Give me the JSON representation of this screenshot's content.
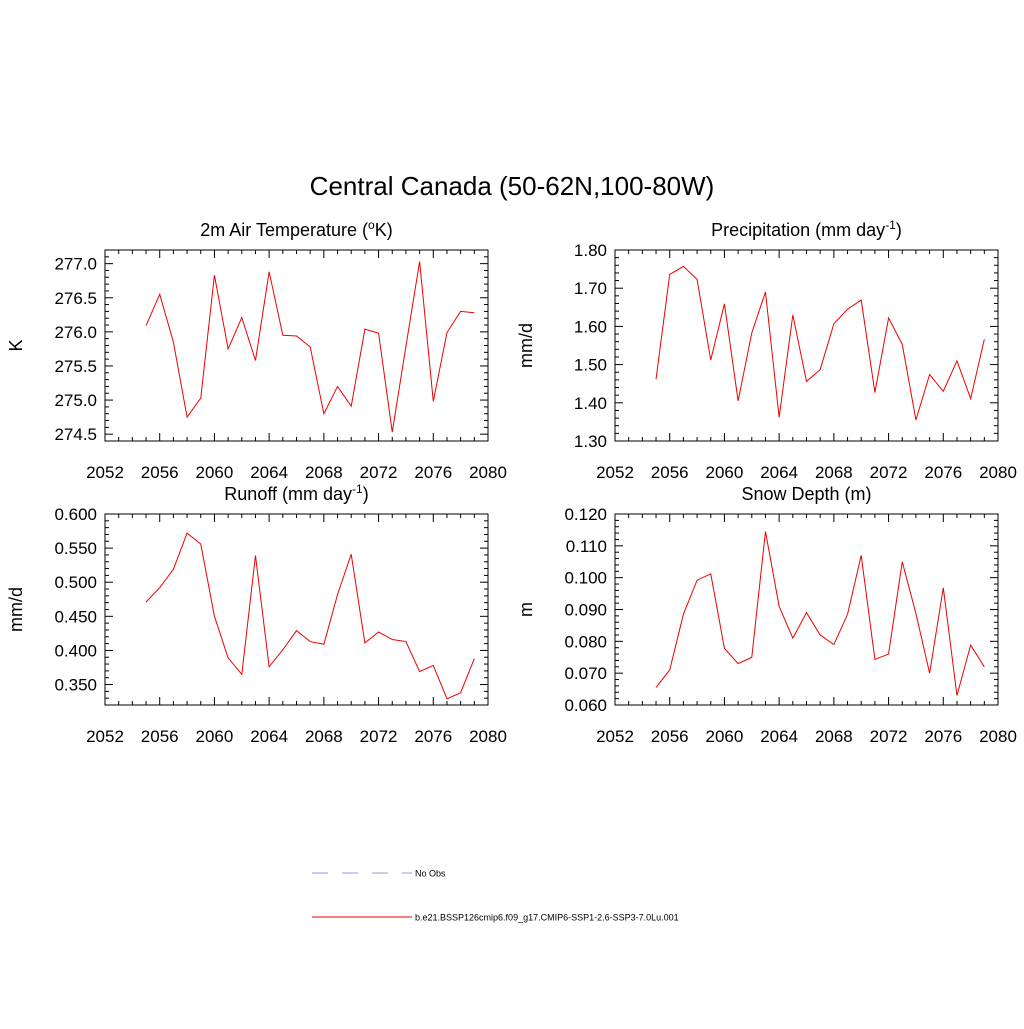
{
  "title": "Central Canada (50-62N,100-80W)",
  "legend": [
    {
      "label": "No Obs",
      "color": "#9999dd",
      "dash": "dashed"
    },
    {
      "label": "b.e21.BSSP126cmip6.f09_g17.CMIP6-SSP1-2.6-SSP3-7.0Lu.001",
      "color": "#ee0000",
      "dash": "solid"
    }
  ],
  "series_color": "#ee0000",
  "chart_data": [
    {
      "type": "line",
      "title_main": "2m Air Temperature (",
      "title_sup": "o",
      "title_end": "K)",
      "ylabel": "K",
      "xlim": [
        2052,
        2080
      ],
      "xticks": [
        "2052",
        "2056",
        "2060",
        "2064",
        "2068",
        "2072",
        "2076",
        "2080"
      ],
      "ylim": [
        274.4,
        277.2
      ],
      "yticks": [
        "274.5",
        "275.0",
        "275.5",
        "276.0",
        "276.5",
        "277.0"
      ],
      "x": [
        2055,
        2056,
        2057,
        2058,
        2059,
        2060,
        2061,
        2062,
        2063,
        2064,
        2065,
        2066,
        2067,
        2068,
        2069,
        2070,
        2071,
        2072,
        2073,
        2074,
        2075,
        2076,
        2077,
        2078,
        2079
      ],
      "values": [
        276.09,
        276.55,
        275.85,
        274.75,
        275.03,
        276.83,
        275.75,
        276.21,
        275.58,
        276.88,
        275.95,
        275.94,
        275.78,
        274.8,
        275.2,
        274.91,
        276.04,
        275.98,
        274.53,
        275.79,
        277.03,
        274.98,
        275.99,
        276.3,
        276.28
      ]
    },
    {
      "type": "line",
      "title_main": "Precipitation (mm day",
      "title_sup": "-1",
      "title_end": ")",
      "ylabel": "mm/d",
      "xlim": [
        2052,
        2080
      ],
      "xticks": [
        "2052",
        "2056",
        "2060",
        "2064",
        "2068",
        "2072",
        "2076",
        "2080"
      ],
      "ylim": [
        1.3,
        1.8
      ],
      "yticks": [
        "1.30",
        "1.40",
        "1.50",
        "1.60",
        "1.70",
        "1.80"
      ],
      "x": [
        2055,
        2056,
        2057,
        2058,
        2059,
        2060,
        2061,
        2062,
        2063,
        2064,
        2065,
        2066,
        2067,
        2068,
        2069,
        2070,
        2071,
        2072,
        2073,
        2074,
        2075,
        2076,
        2077,
        2078,
        2079
      ],
      "values": [
        1.462,
        1.736,
        1.757,
        1.723,
        1.512,
        1.659,
        1.405,
        1.583,
        1.69,
        1.362,
        1.63,
        1.456,
        1.487,
        1.607,
        1.645,
        1.669,
        1.427,
        1.622,
        1.553,
        1.355,
        1.474,
        1.43,
        1.51,
        1.411,
        1.566
      ]
    },
    {
      "type": "line",
      "title_main": "Runoff (mm day",
      "title_sup": "-1",
      "title_end": ")",
      "ylabel": "mm/d",
      "xlim": [
        2052,
        2080
      ],
      "xticks": [
        "2052",
        "2056",
        "2060",
        "2064",
        "2068",
        "2072",
        "2076",
        "2080"
      ],
      "ylim": [
        0.32,
        0.6
      ],
      "yticks": [
        "0.350",
        "0.400",
        "0.450",
        "0.500",
        "0.550",
        "0.600"
      ],
      "x": [
        2055,
        2056,
        2057,
        2058,
        2059,
        2060,
        2061,
        2062,
        2063,
        2064,
        2065,
        2066,
        2067,
        2068,
        2069,
        2070,
        2071,
        2072,
        2073,
        2074,
        2075,
        2076,
        2077,
        2078,
        2079
      ],
      "values": [
        0.471,
        0.492,
        0.519,
        0.572,
        0.556,
        0.45,
        0.389,
        0.365,
        0.539,
        0.376,
        0.401,
        0.429,
        0.413,
        0.409,
        0.482,
        0.541,
        0.411,
        0.427,
        0.416,
        0.413,
        0.369,
        0.378,
        0.329,
        0.338,
        0.388
      ]
    },
    {
      "type": "line",
      "title_main": "Snow Depth (m)",
      "title_sup": "",
      "title_end": "",
      "ylabel": "m",
      "xlim": [
        2052,
        2080
      ],
      "xticks": [
        "2052",
        "2056",
        "2060",
        "2064",
        "2068",
        "2072",
        "2076",
        "2080"
      ],
      "ylim": [
        0.06,
        0.12
      ],
      "yticks": [
        "0.060",
        "0.070",
        "0.080",
        "0.090",
        "0.100",
        "0.110",
        "0.120"
      ],
      "x": [
        2055,
        2056,
        2057,
        2058,
        2059,
        2060,
        2061,
        2062,
        2063,
        2064,
        2065,
        2066,
        2067,
        2068,
        2069,
        2070,
        2071,
        2072,
        2073,
        2074,
        2075,
        2076,
        2077,
        2078,
        2079
      ],
      "values": [
        0.0655,
        0.071,
        0.0885,
        0.0992,
        0.1012,
        0.0778,
        0.073,
        0.075,
        0.1145,
        0.091,
        0.081,
        0.089,
        0.082,
        0.079,
        0.0885,
        0.107,
        0.0743,
        0.076,
        0.105,
        0.0887,
        0.07,
        0.0968,
        0.063,
        0.0788,
        0.072
      ]
    }
  ]
}
